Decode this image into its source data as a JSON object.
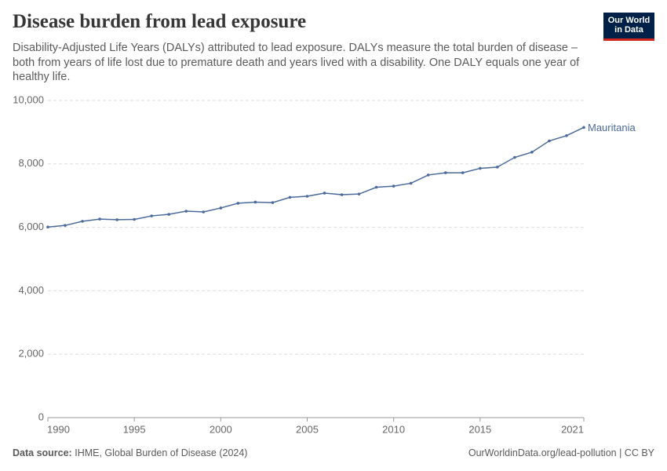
{
  "chart_data": {
    "type": "line",
    "title": "Disease burden from lead exposure",
    "subtitle": "Disability-Adjusted Life Years (DALYs) attributed to lead exposure. DALYs measure the total burden of disease – both from years of life lost due to premature death and years lived with a disability. One DALY equals one year of healthy life.",
    "logo": [
      "Our World",
      "in Data"
    ],
    "source_label": "Data source:",
    "source": "IHME, Global Burden of Disease (2024)",
    "credit": "OurWorldinData.org/lead-pollution | CC BY",
    "x": [
      1990,
      1991,
      1992,
      1993,
      1994,
      1995,
      1996,
      1997,
      1998,
      1999,
      2000,
      2001,
      2002,
      2003,
      2004,
      2005,
      2006,
      2007,
      2008,
      2009,
      2010,
      2011,
      2012,
      2013,
      2014,
      2015,
      2016,
      2017,
      2018,
      2019,
      2020,
      2021
    ],
    "series": [
      {
        "name": "Mauritania",
        "color": "#4c6a9c",
        "values": [
          6010,
          6060,
          6190,
          6260,
          6240,
          6250,
          6360,
          6410,
          6510,
          6485,
          6610,
          6760,
          6795,
          6780,
          6945,
          6980,
          7080,
          7030,
          7050,
          7265,
          7300,
          7390,
          7650,
          7720,
          7720,
          7860,
          7900,
          8205,
          8370,
          8725,
          8890,
          9150
        ]
      }
    ],
    "xlim": [
      1990,
      2021
    ],
    "xticks": [
      1990,
      1995,
      2000,
      2005,
      2010,
      2015,
      2021
    ],
    "ylim": [
      0,
      10000
    ],
    "yticks": [
      0,
      {
        "value": 2000,
        "label": "2,000"
      },
      {
        "value": 4000,
        "label": "4,000"
      },
      {
        "value": 6000,
        "label": "6,000"
      },
      {
        "value": 8000,
        "label": "8,000"
      },
      {
        "value": 10000,
        "label": "10,000"
      }
    ],
    "grid": true
  }
}
